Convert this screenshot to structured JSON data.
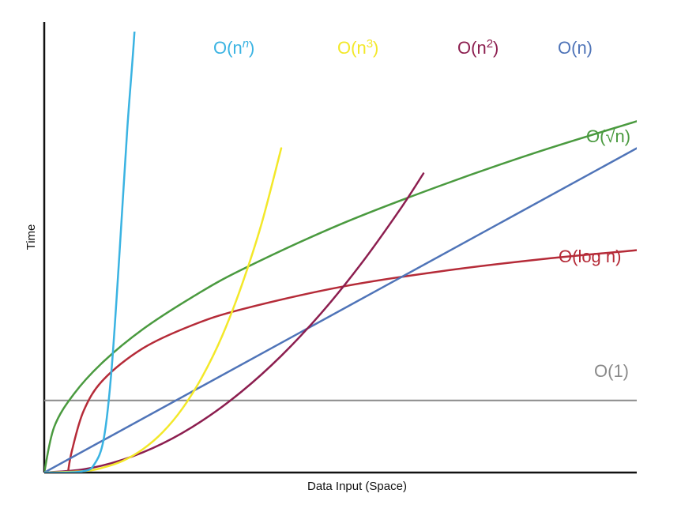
{
  "chart_data": {
    "type": "line",
    "xlabel": "Data Input (Space)",
    "ylabel": "Time",
    "grid": false,
    "legend": "none",
    "series": [
      {
        "label_text": "O(n",
        "label_sup": "n",
        "label_close": ")",
        "color": "#3ab3e2",
        "x": [
          0.0,
          0.1,
          0.2,
          0.25,
          0.3,
          0.34,
          0.38,
          0.42,
          0.46,
          0.49
        ],
        "y": [
          0.0,
          0.0,
          0.004,
          0.02,
          0.09,
          0.28,
          0.6,
          0.95,
          1.25,
          1.6
        ]
      },
      {
        "label_text": "O(n",
        "label_sup": "3",
        "label_close": ")",
        "color": "#f3e829",
        "x": [
          0.0,
          0.2,
          0.3,
          0.4,
          0.5,
          0.6,
          0.7,
          0.8,
          0.9,
          1.0,
          1.1,
          1.2
        ],
        "y": [
          0.0,
          0.004,
          0.014,
          0.033,
          0.065,
          0.112,
          0.178,
          0.266,
          0.378,
          0.52,
          0.69,
          0.9
        ]
      },
      {
        "label_text": "O(n",
        "label_sup": "2",
        "label_close": ")",
        "color": "#8c1e4f",
        "x": [
          0.0,
          0.2,
          0.4,
          0.6,
          0.8,
          1.0,
          1.2,
          1.4,
          1.6,
          1.8,
          1.92
        ],
        "y": [
          0.0,
          0.009,
          0.036,
          0.081,
          0.144,
          0.225,
          0.324,
          0.441,
          0.576,
          0.729,
          0.83
        ]
      },
      {
        "label_text": "O(n)",
        "label_sup": "",
        "label_close": "",
        "color": "#4f74b8",
        "x": [
          0.0,
          3.0
        ],
        "y": [
          0.0,
          0.9
        ]
      },
      {
        "label_text": "O(√n)",
        "label_sup": "",
        "label_close": "",
        "color": "#4a9a3f",
        "x": [
          0.0,
          0.05,
          0.15,
          0.3,
          0.5,
          0.75,
          1.0,
          1.5,
          2.0,
          2.5,
          3.0
        ],
        "y": [
          0.0,
          0.126,
          0.218,
          0.308,
          0.398,
          0.487,
          0.563,
          0.689,
          0.795,
          0.89,
          0.975
        ]
      },
      {
        "label_text": "O(log n)",
        "label_sup": "",
        "label_close": "",
        "color": "#b52b38",
        "x": [
          0.12,
          0.14,
          0.2,
          0.3,
          0.5,
          0.75,
          1.0,
          1.5,
          2.0,
          2.5,
          3.0
        ],
        "y": [
          0.0,
          0.06,
          0.172,
          0.258,
          0.345,
          0.409,
          0.453,
          0.515,
          0.558,
          0.591,
          0.617
        ]
      },
      {
        "label_text": "O(1)",
        "label_sup": "",
        "label_close": "",
        "color": "#8a8a8a",
        "x": [
          0.0,
          3.0
        ],
        "y": [
          0.2,
          0.2
        ]
      }
    ]
  }
}
